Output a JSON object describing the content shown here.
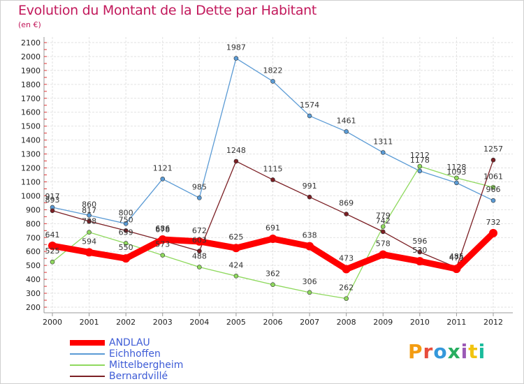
{
  "title": "Evolution du Montant de la Dette par Habitant",
  "subtitle": "(en €)",
  "logo": {
    "text": "Proxiti",
    "colors": [
      "#f39c12",
      "#e74c3c",
      "#3498db",
      "#27ae60",
      "#9b59b6",
      "#f1c40f",
      "#1abc9c"
    ]
  },
  "chart_data": {
    "type": "line",
    "x": [
      "2000",
      "2001",
      "2002",
      "2003",
      "2004",
      "2005",
      "2006",
      "2007",
      "2008",
      "2009",
      "2010",
      "2011",
      "2012"
    ],
    "ylim": [
      200,
      2100
    ],
    "yticks": [
      200,
      300,
      400,
      500,
      600,
      700,
      800,
      900,
      1000,
      1100,
      1200,
      1300,
      1400,
      1500,
      1600,
      1700,
      1800,
      1900,
      2000,
      2100
    ],
    "grid": true,
    "legend_position": "bottom-left",
    "series": [
      {
        "name": "ANDLAU",
        "color": "#ff0000",
        "values": [
          641,
          594,
          550,
          686,
          672,
          625,
          691,
          638,
          473,
          578,
          530,
          475,
          732
        ]
      },
      {
        "name": "Eichhoffen",
        "color": "#5b9bd5",
        "values": [
          917,
          860,
          800,
          1121,
          985,
          1987,
          1822,
          1574,
          1461,
          1311,
          1178,
          1093,
          966
        ]
      },
      {
        "name": "Mittelbergheim",
        "color": "#8fd95e",
        "values": [
          525,
          738,
          659,
          573,
          488,
          424,
          362,
          306,
          262,
          779,
          1212,
          1128,
          1061
        ]
      },
      {
        "name": "Bernardvillé",
        "color": "#7b1f24",
        "values": [
          893,
          817,
          750,
          678,
          603,
          1248,
          1115,
          991,
          869,
          742,
          596,
          485,
          1257
        ]
      }
    ]
  }
}
